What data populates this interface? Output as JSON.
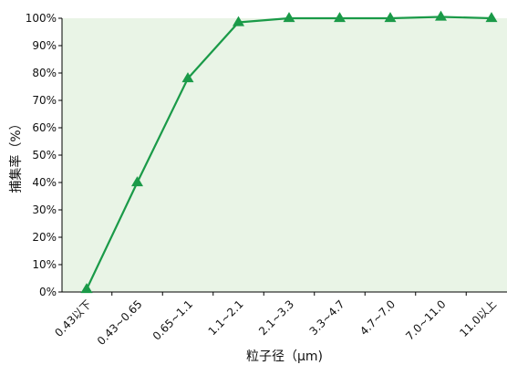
{
  "chart_data": {
    "type": "line",
    "title": "",
    "xlabel": "粒子径（μm)",
    "ylabel": "捕集率（%）",
    "categories": [
      "0.43以下",
      "0.43~0.65",
      "0.65~1.1",
      "1.1~2.1",
      "2.1~3.3",
      "3.3~4.7",
      "4.7~7.0",
      "7.0~11.0",
      "11.0以上"
    ],
    "series": [
      {
        "values": [
          1,
          40,
          78,
          98.5,
          100,
          100,
          100,
          100.5,
          100
        ]
      }
    ],
    "ylim": [
      0,
      100
    ],
    "y_ticks": [
      "0%",
      "10%",
      "20%",
      "30%",
      "40%",
      "50%",
      "60%",
      "70%",
      "80%",
      "90%",
      "100%"
    ],
    "grid": false,
    "legend": "none",
    "marker": "triangle",
    "colors": {
      "line": "#1a9a48",
      "plot_bg": "#e9f4e6",
      "axis": "#000000"
    }
  }
}
